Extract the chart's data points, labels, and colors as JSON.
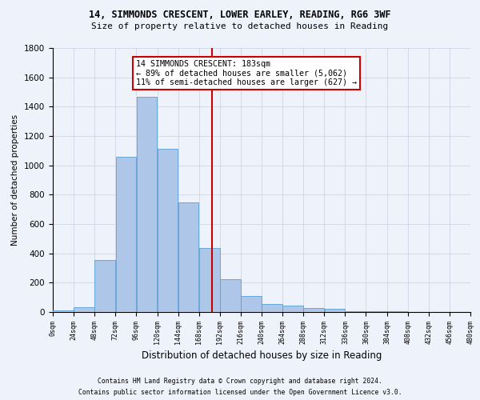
{
  "title_line1": "14, SIMMONDS CRESCENT, LOWER EARLEY, READING, RG6 3WF",
  "title_line2": "Size of property relative to detached houses in Reading",
  "xlabel": "Distribution of detached houses by size in Reading",
  "ylabel": "Number of detached properties",
  "bin_edges": [
    0,
    24,
    48,
    72,
    96,
    120,
    144,
    168,
    192,
    216,
    240,
    264,
    288,
    312,
    336,
    360,
    384,
    408,
    432,
    456,
    480
  ],
  "bar_heights": [
    10,
    35,
    355,
    1060,
    1470,
    1115,
    750,
    435,
    225,
    110,
    55,
    45,
    30,
    20,
    8,
    5,
    3,
    2,
    1,
    1
  ],
  "bar_color": "#aec6e8",
  "bar_edge_color": "#5a9fd4",
  "vline_x": 183,
  "vline_color": "#cc0000",
  "annotation_text": "14 SIMMONDS CRESCENT: 183sqm\n← 89% of detached houses are smaller (5,062)\n11% of semi-detached houses are larger (627) →",
  "annotation_box_color": "#cc0000",
  "ylim": [
    0,
    1800
  ],
  "xlim": [
    0,
    480
  ],
  "footer_line1": "Contains HM Land Registry data © Crown copyright and database right 2024.",
  "footer_line2": "Contains public sector information licensed under the Open Government Licence v3.0.",
  "background_color": "#eef2fb",
  "plot_background": "#eef2fb",
  "grid_color": "#c8cfe0",
  "tick_labels": [
    "0sqm",
    "24sqm",
    "48sqm",
    "72sqm",
    "96sqm",
    "120sqm",
    "144sqm",
    "168sqm",
    "192sqm",
    "216sqm",
    "240sqm",
    "264sqm",
    "288sqm",
    "312sqm",
    "336sqm",
    "360sqm",
    "384sqm",
    "408sqm",
    "432sqm",
    "456sqm",
    "480sqm"
  ]
}
